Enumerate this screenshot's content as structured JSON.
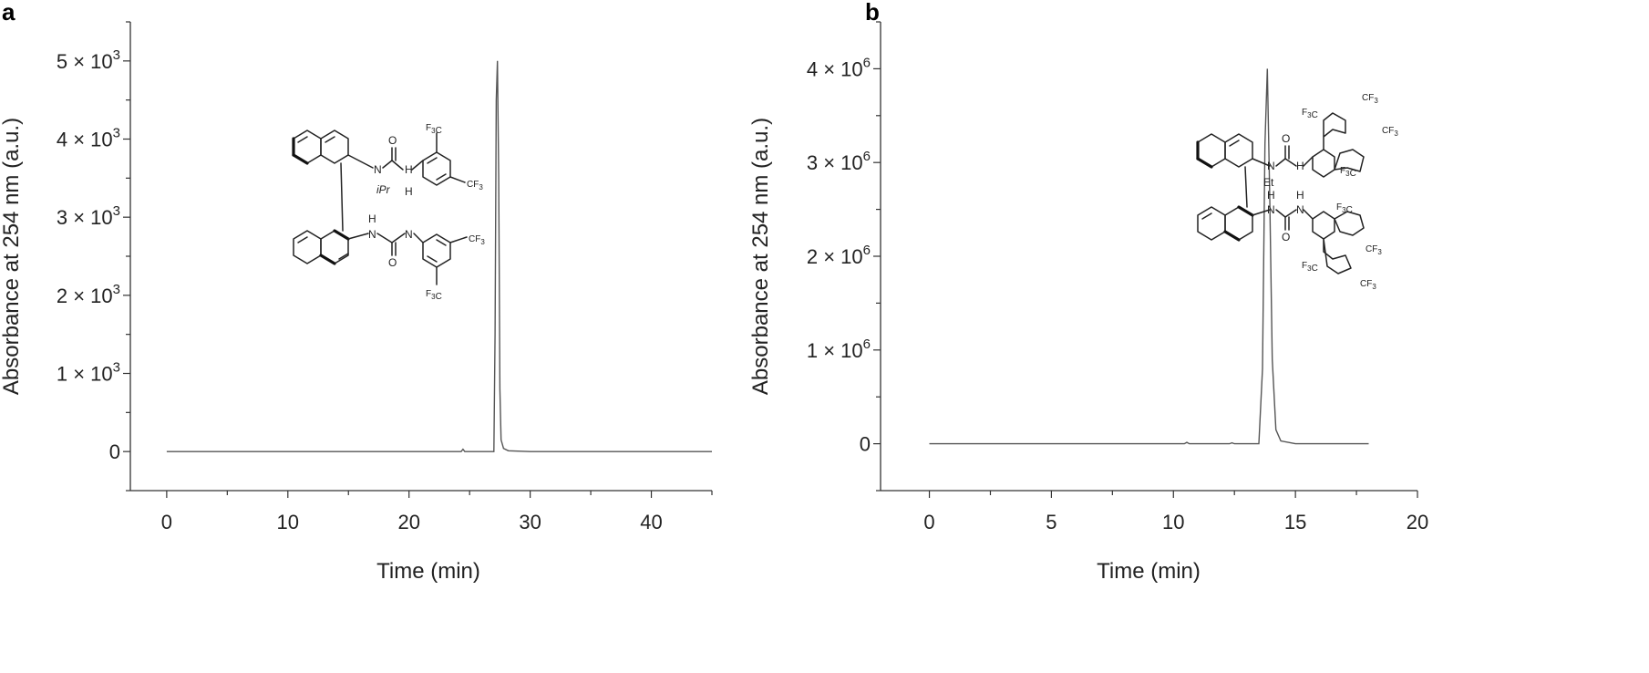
{
  "panels": [
    {
      "id": "a",
      "label": "a",
      "structure": {
        "labels": [
          "F3C",
          "CF3",
          "N",
          "H",
          "O",
          "iPr",
          "H",
          "H",
          "N",
          "N",
          "O",
          "CF3",
          "F3C"
        ]
      }
    },
    {
      "id": "b",
      "label": "b",
      "structure": {
        "labels": [
          "F3C",
          "CF3",
          "CF3",
          "F3C",
          "N",
          "H",
          "O",
          "Et",
          "H",
          "H",
          "N",
          "N",
          "O",
          "F3C",
          "CF3",
          "F3C",
          "CF3"
        ]
      }
    }
  ],
  "chart_data": [
    {
      "type": "line",
      "panel": "a",
      "title": "",
      "xlabel": "Time (min)",
      "ylabel": "Absorbance at 254 nm (a.u.)",
      "xlim": [
        -3,
        45
      ],
      "ylim": [
        -500,
        5500
      ],
      "xticks": [
        0,
        10,
        20,
        30,
        40
      ],
      "xtick_labels": [
        "0",
        "10",
        "20",
        "30",
        "40"
      ],
      "yticks": [
        0,
        1000,
        2000,
        3000,
        4000,
        5000
      ],
      "ytick_labels": [
        {
          "mantissa": "0",
          "exp": ""
        },
        {
          "mantissa": "1 × 10",
          "exp": "3"
        },
        {
          "mantissa": "2 × 10",
          "exp": "3"
        },
        {
          "mantissa": "3 × 10",
          "exp": "3"
        },
        {
          "mantissa": "4 × 10",
          "exp": "3"
        },
        {
          "mantissa": "5 × 10",
          "exp": "3"
        }
      ],
      "grid": false,
      "series": [
        {
          "x": [
            0,
            10,
            20,
            24.3,
            24.45,
            24.6,
            27.0,
            27.1,
            27.2,
            27.3,
            27.4,
            27.5,
            27.6,
            27.8,
            28.2,
            30,
            45
          ],
          "y": [
            0,
            0,
            0,
            0,
            30,
            0,
            0,
            1500,
            4500,
            5000,
            3500,
            800,
            150,
            40,
            10,
            0,
            0
          ]
        }
      ]
    },
    {
      "type": "line",
      "panel": "b",
      "title": "",
      "xlabel": "Time (min)",
      "ylabel": "Absorbance at 254 nm (a.u.)",
      "xlim": [
        -2,
        20
      ],
      "ylim": [
        -500000,
        4500000
      ],
      "xticks": [
        0,
        5,
        10,
        15,
        20
      ],
      "xtick_labels": [
        "0",
        "5",
        "10",
        "15",
        "20"
      ],
      "yticks": [
        0,
        1000000,
        2000000,
        3000000,
        4000000
      ],
      "ytick_labels": [
        {
          "mantissa": "0",
          "exp": ""
        },
        {
          "mantissa": "1 × 10",
          "exp": "6"
        },
        {
          "mantissa": "2 × 10",
          "exp": "6"
        },
        {
          "mantissa": "3 × 10",
          "exp": "6"
        },
        {
          "mantissa": "4 × 10",
          "exp": "6"
        }
      ],
      "grid": false,
      "series": [
        {
          "x": [
            0,
            8,
            10.45,
            10.55,
            10.65,
            12.3,
            12.4,
            12.5,
            13.5,
            13.65,
            13.75,
            13.85,
            13.95,
            14.05,
            14.2,
            14.4,
            15,
            18
          ],
          "y": [
            0,
            0,
            0,
            15000,
            0,
            0,
            10000,
            0,
            0,
            800000,
            3200000,
            4000000,
            2600000,
            900000,
            150000,
            30000,
            0,
            0
          ]
        }
      ]
    }
  ]
}
